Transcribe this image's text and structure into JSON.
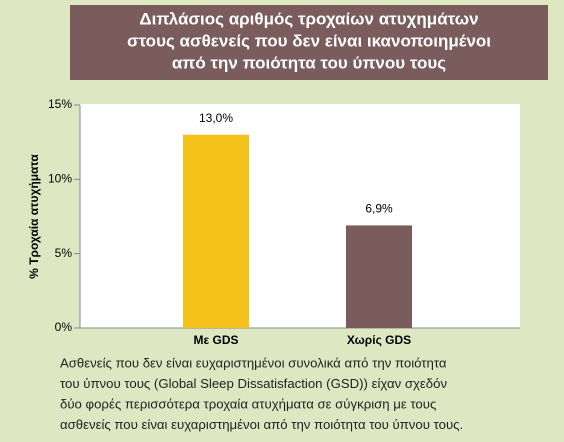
{
  "chart_data": {
    "type": "bar",
    "title": [
      "Διπλάσιος αριθμός τροχαίων ατυχημάτων",
      "στους ασθενείς που δεν είναι ικανοποιημένοι",
      "από την ποιότητα του ύπνου τους"
    ],
    "ylabel": "% Τροχαία ατυχήματα",
    "categories": [
      "Με GDS",
      "Χωρίς GDS"
    ],
    "values": [
      13.0,
      6.9
    ],
    "value_labels": [
      "13,0%",
      "6,9%"
    ],
    "colors": [
      "#f5c21b",
      "#7b5c5c"
    ],
    "ylim": [
      0,
      15
    ],
    "yticks": [
      {
        "value": 0,
        "label": "0%"
      },
      {
        "value": 5,
        "label": "5%"
      },
      {
        "value": 10,
        "label": "10%"
      },
      {
        "value": 15,
        "label": "15%"
      }
    ],
    "caption": [
      "Ασθενείς που δεν είναι ευχαριστημένοι συνολικά από την ποιότητα",
      "του ύπνου τους (Global Sleep Dissatisfaction (GSD)) είχαν σχεδόν",
      "δύο φορές περισσότερα τροχαία ατυχήματα σε σύγκριση με τους",
      "ασθενείς που είναι ευχαριστημένοι από την ποιότητα του ύπνου τους."
    ]
  }
}
